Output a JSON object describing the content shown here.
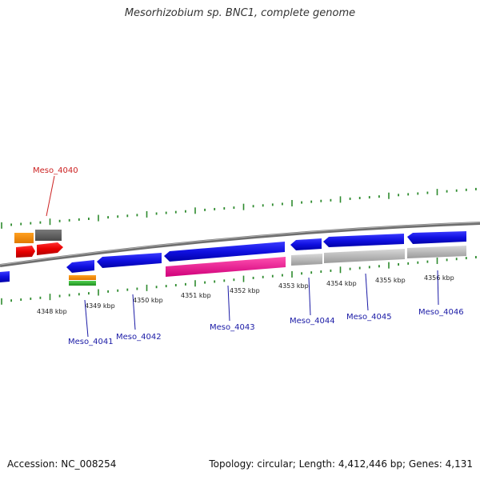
{
  "title": "Mesorhizobium sp. BNC1, complete genome",
  "footer": {
    "accession": "Accession: NC_008254",
    "summary": "Topology: circular; Length: 4,412,446 bp; Genes: 4,131"
  },
  "colors": {
    "backbone": "#8a8a8a",
    "tick": "#2e8b2e",
    "label_plus": "#cc2222",
    "label_minus": "#1a1aa6"
  },
  "kbp_labels": [
    "4348 kbp",
    "4349 kbp",
    "4350 kbp",
    "4351 kbp",
    "4352 kbp",
    "4353 kbp",
    "4354 kbp",
    "4355 kbp",
    "4356 kbp"
  ],
  "gene_labels": [
    {
      "id": "Meso_4040",
      "color": "#cc2222"
    },
    {
      "id": "Meso_4041",
      "color": "#1a1aa6"
    },
    {
      "id": "Meso_4042",
      "color": "#1a1aa6"
    },
    {
      "id": "Meso_4043",
      "color": "#1a1aa6"
    },
    {
      "id": "Meso_4044",
      "color": "#1a1aa6"
    },
    {
      "id": "Meso_4045",
      "color": "#1a1aa6"
    },
    {
      "id": "Meso_4046",
      "color": "#1a1aa6"
    }
  ]
}
